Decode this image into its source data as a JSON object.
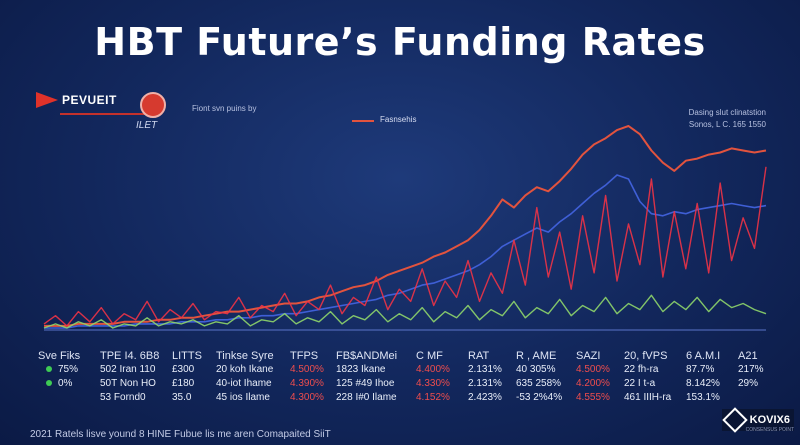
{
  "title": "HBT Future’s Funding Rates",
  "header": {
    "logo_left": "PEVUEIT",
    "logo_mid": "ILET",
    "note_left": "Fiont svn puins by",
    "legend_label": "Fasnsehis",
    "note_right_1": "Dasing slut clinatstion",
    "note_right_2": "Sonos, L C. 165 1550"
  },
  "colors": {
    "background": "#12275c",
    "orange": "#e2533e",
    "blue": "#3f5fd6",
    "red": "#ee3346",
    "green": "#8fd66a"
  },
  "chart_data": {
    "type": "line",
    "title": "HBT Future’s Funding Rates",
    "xlabel": "",
    "ylabel": "",
    "ylim": [
      0,
      100
    ],
    "grid": false,
    "legend_placement": "top-center",
    "series": [
      {
        "name": "Fasnsehis",
        "color": "#e2533e",
        "values": [
          2,
          2,
          2,
          3,
          3,
          3,
          3,
          4,
          4,
          4,
          5,
          5,
          6,
          6,
          7,
          8,
          9,
          9,
          10,
          11,
          12,
          13,
          13,
          14,
          16,
          17,
          19,
          21,
          22,
          24,
          27,
          29,
          31,
          33,
          36,
          38,
          41,
          44,
          49,
          56,
          64,
          60,
          66,
          70,
          68,
          73,
          79,
          86,
          91,
          94,
          98,
          100,
          96,
          88,
          82,
          78,
          83,
          84,
          86,
          87,
          89,
          88,
          87,
          88
        ]
      },
      {
        "values": [
          1,
          1,
          1,
          2,
          2,
          2,
          2,
          2,
          3,
          3,
          3,
          3,
          4,
          4,
          4,
          5,
          5,
          6,
          6,
          7,
          7,
          8,
          8,
          9,
          10,
          11,
          12,
          13,
          14,
          15,
          17,
          18,
          20,
          22,
          23,
          25,
          27,
          29,
          32,
          36,
          41,
          44,
          47,
          50,
          48,
          53,
          57,
          62,
          67,
          71,
          76,
          74,
          63,
          57,
          56,
          58,
          57,
          59,
          60,
          61,
          62,
          61,
          60,
          61
        ]
      },
      {
        "values": [
          3,
          7,
          2,
          9,
          4,
          11,
          3,
          8,
          5,
          14,
          4,
          10,
          6,
          13,
          5,
          9,
          8,
          16,
          6,
          12,
          9,
          18,
          7,
          14,
          10,
          22,
          8,
          16,
          12,
          26,
          10,
          20,
          14,
          30,
          12,
          24,
          16,
          34,
          14,
          28,
          18,
          44,
          22,
          60,
          26,
          48,
          20,
          56,
          28,
          66,
          24,
          52,
          32,
          74,
          26,
          58,
          30,
          62,
          28,
          72,
          34,
          55,
          40,
          80
        ]
      },
      {
        "values": [
          1,
          3,
          1,
          4,
          2,
          5,
          1,
          3,
          2,
          6,
          2,
          4,
          3,
          5,
          2,
          4,
          3,
          7,
          2,
          5,
          4,
          8,
          3,
          6,
          4,
          9,
          3,
          7,
          5,
          10,
          4,
          8,
          5,
          11,
          4,
          9,
          6,
          12,
          5,
          10,
          7,
          14,
          6,
          11,
          8,
          15,
          7,
          12,
          9,
          16,
          8,
          13,
          10,
          17,
          9,
          14,
          10,
          16,
          9,
          15,
          11,
          13,
          10,
          8
        ]
      }
    ]
  },
  "table": {
    "headers": [
      "Sve Fiks",
      "TPE I4. 6B8",
      "LITTS",
      "Tinkse Syre",
      "TFPS",
      "FB$ANDMei",
      "C MF",
      "RAT",
      "R , AME",
      "SAZI",
      "20, fVPS",
      "6 A.M.I",
      "A21"
    ],
    "rows": [
      [
        "75%",
        "502 Iran 110",
        "£300",
        "20 koh Ikane",
        "4.500%",
        "1823 Ikane",
        "4.400%",
        "2.131%",
        "40 305%",
        "4.500%",
        "22 fh-ra",
        "87.7%",
        "217%"
      ],
      [
        "0%",
        "50T Non HO",
        "£180",
        "40-iot Ihame",
        "4.390%",
        "125 #49 Ihoe",
        "4.330%",
        "2.131%",
        "635 258%",
        "4.200%",
        "22 I t-a",
        "8.142%",
        "29%"
      ],
      [
        "",
        "53 Fornd0",
        "35.0",
        "45 ios Ilame",
        "4.300%",
        "228 I#0 Ilame",
        "4.152%",
        "2.423%",
        "-53 2%4%",
        "4.555%",
        "461 IIIH-ra",
        "153.1%",
        ""
      ]
    ]
  },
  "footer": "2021 Ratels lisve yound 8 HINE Fubue lis me aren Comapaited SiiT",
  "brand": {
    "name": "KOVIX6",
    "sub": "CONSENSUS POINT"
  }
}
